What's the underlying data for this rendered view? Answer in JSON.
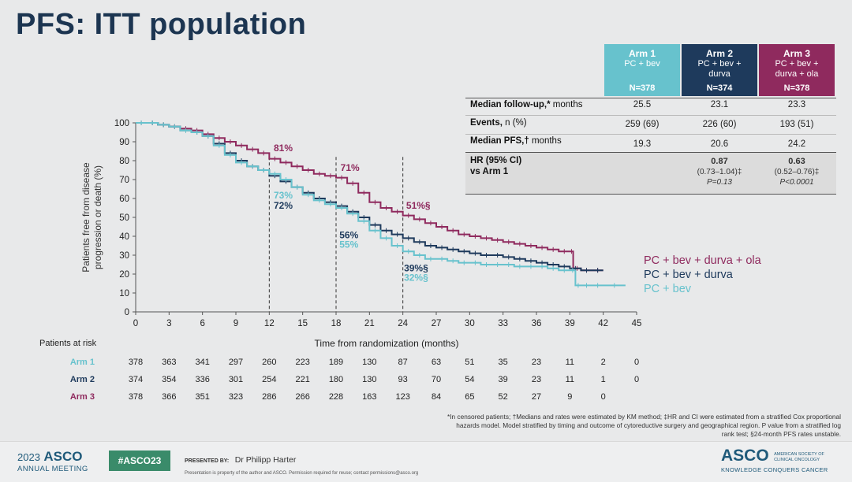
{
  "title": "PFS: ITT population",
  "arms_header": [
    {
      "arm": "Arm 1",
      "desc": "PC + bev",
      "n": "N=378",
      "color": "#67c2cd"
    },
    {
      "arm": "Arm 2",
      "desc": "PC + bev + durva",
      "n": "N=374",
      "color": "#1e3a5c"
    },
    {
      "arm": "Arm 3",
      "desc": "PC + bev + durva + ola",
      "n": "N=378",
      "color": "#8f2a5e"
    }
  ],
  "table": {
    "rows": [
      {
        "label": "Median follow-up,* months",
        "values": [
          "25.5",
          "23.1",
          "23.3"
        ]
      },
      {
        "label": "Events, n (%)",
        "values": [
          "259 (69)",
          "226 (60)",
          "193 (51)"
        ]
      },
      {
        "label": "Median PFS,† months",
        "values": [
          "19.3",
          "20.6",
          "24.2"
        ]
      }
    ],
    "hr_label_line1": "HR (95% CI)",
    "hr_label_line2": "vs Arm 1",
    "hr_values": [
      {
        "hr": "",
        "ci": "",
        "p": ""
      },
      {
        "hr": "0.87",
        "ci": "(0.73–1.04)‡",
        "p": "P=0.13"
      },
      {
        "hr": "0.63",
        "ci": "(0.52–0.76)‡",
        "p": "P<0.0001"
      }
    ]
  },
  "chart_data": {
    "type": "line",
    "xlabel": "Time from randomization (months)",
    "ylabel_line1": "Patients free from disease",
    "ylabel_line2": "progression or death (%)",
    "xlim": [
      0,
      45
    ],
    "ylim": [
      0,
      100
    ],
    "xticks": [
      0,
      3,
      6,
      9,
      12,
      15,
      18,
      21,
      24,
      27,
      30,
      33,
      36,
      39,
      42,
      45
    ],
    "yticks": [
      0,
      10,
      20,
      30,
      40,
      50,
      60,
      70,
      80,
      90,
      100
    ],
    "series": [
      {
        "name": "PC + bev + durva + ola",
        "color": "#8f2a5e",
        "x": [
          0,
          1,
          2,
          3,
          4,
          5,
          6,
          7,
          8,
          9,
          10,
          11,
          12,
          13,
          14,
          15,
          16,
          17,
          18,
          19,
          20,
          21,
          22,
          23,
          24,
          25,
          26,
          27,
          28,
          29,
          30,
          31,
          32,
          33,
          34,
          35,
          36,
          37,
          38,
          39,
          39.3,
          40,
          41,
          42
        ],
        "y": [
          100,
          100,
          99,
          98,
          97,
          96,
          94,
          92,
          90,
          88,
          86,
          84,
          81,
          79,
          77,
          75,
          73,
          72,
          71,
          68,
          63,
          58,
          55,
          53,
          51,
          49,
          47,
          45,
          43,
          41,
          40,
          39,
          38,
          37,
          36,
          35,
          34,
          33,
          32,
          32,
          23,
          22,
          22,
          22
        ]
      },
      {
        "name": "PC + bev + durva",
        "color": "#1e3a5c",
        "x": [
          0,
          1,
          2,
          3,
          4,
          5,
          6,
          7,
          8,
          9,
          10,
          11,
          12,
          13,
          14,
          15,
          16,
          17,
          18,
          19,
          20,
          21,
          22,
          23,
          24,
          25,
          26,
          27,
          28,
          29,
          30,
          31,
          32,
          33,
          34,
          35,
          36,
          37,
          38,
          39,
          40,
          41,
          42
        ],
        "y": [
          100,
          100,
          99,
          98,
          96,
          95,
          93,
          89,
          84,
          80,
          77,
          75,
          72,
          69,
          66,
          63,
          60,
          58,
          56,
          53,
          50,
          46,
          43,
          41,
          39,
          37,
          35,
          34,
          33,
          32,
          31,
          30,
          30,
          29,
          28,
          27,
          26,
          25,
          24,
          23,
          22,
          22,
          22
        ]
      },
      {
        "name": "PC + bev",
        "color": "#67c2cd",
        "x": [
          0,
          1,
          2,
          3,
          4,
          5,
          6,
          7,
          8,
          9,
          10,
          11,
          12,
          13,
          14,
          15,
          16,
          17,
          18,
          19,
          20,
          21,
          22,
          23,
          24,
          25,
          26,
          27,
          28,
          29,
          30,
          31,
          32,
          33,
          34,
          35,
          36,
          37,
          38,
          39,
          39.5,
          40,
          41,
          42,
          44
        ],
        "y": [
          100,
          100,
          99,
          98,
          96,
          95,
          93,
          88,
          83,
          79,
          77,
          75,
          73,
          70,
          66,
          62,
          59,
          57,
          55,
          52,
          48,
          43,
          39,
          35,
          32,
          30,
          28,
          28,
          27,
          26,
          26,
          25,
          25,
          25,
          24,
          24,
          24,
          23,
          22,
          22,
          14,
          14,
          14,
          14,
          14
        ]
      }
    ],
    "vlines": [
      12,
      18,
      24
    ],
    "annotations": [
      {
        "text": "81%",
        "x": 12.4,
        "y": 85,
        "color": "#8f2a5e"
      },
      {
        "text": "73%",
        "x": 12.4,
        "y": 60,
        "color": "#67c2cd"
      },
      {
        "text": "72%",
        "x": 12.4,
        "y": 54.5,
        "color": "#1e3a5c"
      },
      {
        "text": "71%",
        "x": 18.4,
        "y": 74.5,
        "color": "#8f2a5e"
      },
      {
        "text": "56%",
        "x": 18.3,
        "y": 39,
        "color": "#1e3a5c"
      },
      {
        "text": "55%",
        "x": 18.3,
        "y": 34,
        "color": "#67c2cd"
      },
      {
        "text": "51%§",
        "x": 24.3,
        "y": 54.5,
        "color": "#8f2a5e"
      },
      {
        "text": "39%§",
        "x": 24.1,
        "y": 21.5,
        "color": "#1e3a5c"
      },
      {
        "text": "32%§",
        "x": 24.1,
        "y": 16.5,
        "color": "#67c2cd"
      }
    ],
    "legend": [
      {
        "text": "PC + bev + durva + ola",
        "color": "#8f2a5e"
      },
      {
        "text": "PC + bev + durva",
        "color": "#1e3a5c"
      },
      {
        "text": "PC + bev",
        "color": "#67c2cd"
      }
    ]
  },
  "at_risk": {
    "header": "Patients at risk",
    "rows": [
      {
        "label": "Arm 1",
        "color": "#67c2cd",
        "values": [
          "378",
          "363",
          "341",
          "297",
          "260",
          "223",
          "189",
          "130",
          "87",
          "63",
          "51",
          "35",
          "23",
          "11",
          "2",
          "0"
        ]
      },
      {
        "label": "Arm 2",
        "color": "#1e3a5c",
        "values": [
          "374",
          "354",
          "336",
          "301",
          "254",
          "221",
          "180",
          "130",
          "93",
          "70",
          "54",
          "39",
          "23",
          "11",
          "1",
          "0"
        ]
      },
      {
        "label": "Arm 3",
        "color": "#8f2a5e",
        "values": [
          "378",
          "366",
          "351",
          "323",
          "286",
          "266",
          "228",
          "163",
          "123",
          "84",
          "65",
          "52",
          "27",
          "9",
          "0",
          ""
        ]
      }
    ]
  },
  "footnote": "*In censored patients; †Medians and rates were estimated by KM method; ‡HR and CI were estimated from a stratified Cox proportional hazards model. Model stratified by timing and outcome of cytoreductive surgery and geographical region. P value from a stratified log rank test; §24-month PFS rates unstable.",
  "footer": {
    "asco_year": "2023",
    "asco_name": "ASCO",
    "annual_meeting": "ANNUAL MEETING",
    "hashtag": "#ASCO23",
    "presented_by_label": "PRESENTED BY:",
    "presenter": "Dr Philipp Harter",
    "presented_note": "Presentation is property of the author and ASCO. Permission required for reuse; contact permissions@asco.org",
    "asco_right": "ASCO",
    "society_line1": "AMERICAN SOCIETY OF",
    "society_line2": "CLINICAL ONCOLOGY",
    "tagline": "KNOWLEDGE CONQUERS CANCER"
  }
}
